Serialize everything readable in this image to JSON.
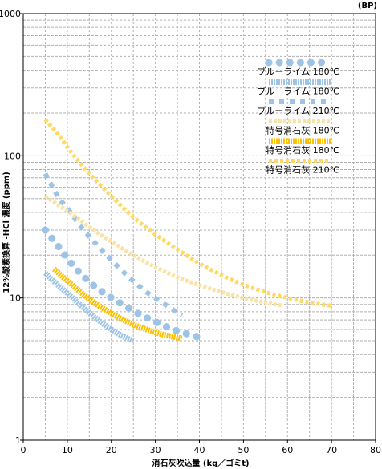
{
  "chart_data": {
    "type": "line",
    "unit_label": "(BP)",
    "xlabel": "消石灰吹込量 (kg／ゴミt)",
    "ylabel": "12%酸素換算 -HCl 濃度 (ppm)",
    "xlim": [
      0,
      80
    ],
    "ylim": [
      1,
      1000
    ],
    "y_scale": "log",
    "grid": true,
    "legend_position": "top-right",
    "x_ticks": [
      "0",
      "10",
      "20",
      "30",
      "40",
      "50",
      "60",
      "70",
      "80"
    ],
    "y_ticks": [
      "1",
      "10",
      "100",
      "1000"
    ],
    "colors": {
      "blue": "#9dc3e6",
      "orange": "#ffc000",
      "light_orange": "#f9e3a8",
      "yellow": "#ffd966",
      "grid": "#b0b0b0"
    },
    "series": [
      {
        "name": "ブルーライム 180℃",
        "style": "ellipses",
        "color": "#9dc3e6",
        "x": [
          5,
          8,
          10,
          12,
          15,
          18,
          22,
          26,
          30,
          34,
          38,
          41
        ],
        "y": [
          30,
          23,
          19,
          16,
          13,
          11,
          9.2,
          7.8,
          6.8,
          6.0,
          5.5,
          5.2
        ]
      },
      {
        "name": "ブルーライム 180℃",
        "style": "solid-band",
        "color": "#9dc3e6",
        "x": [
          5,
          7,
          10,
          13,
          16,
          19,
          22,
          25
        ],
        "y": [
          15,
          13,
          10.8,
          8.9,
          7.4,
          6.3,
          5.5,
          5.0
        ]
      },
      {
        "name": "ブルーライム 210℃",
        "style": "squares",
        "color": "#9dc3e6",
        "x": [
          5,
          8,
          10,
          13,
          16,
          20,
          24,
          28,
          32,
          36
        ],
        "y": [
          75,
          51,
          43,
          32,
          25,
          18.5,
          14,
          11,
          9.1,
          7.5
        ]
      },
      {
        "name": "特号消石灰 180℃",
        "style": "light-dashes",
        "color": "#f9e3a8",
        "x": [
          5,
          8,
          12,
          16,
          20,
          25,
          30,
          35,
          40,
          45,
          50,
          55,
          59
        ],
        "y": [
          52,
          45,
          37,
          30,
          25,
          20,
          16.5,
          14,
          12.3,
          11,
          10,
          9.3,
          8.8
        ]
      },
      {
        "name": "特号消石灰 180℃",
        "style": "solid-band",
        "color": "#ffc000",
        "x": [
          7,
          10,
          13,
          16,
          20,
          24,
          28,
          32,
          36
        ],
        "y": [
          16,
          13.2,
          11,
          9.3,
          7.8,
          6.7,
          6.0,
          5.5,
          5.2
        ]
      },
      {
        "name": "特号消石灰 210℃",
        "style": "dashes",
        "color": "#ffd966",
        "x": [
          5,
          8,
          11,
          15,
          20,
          25,
          30,
          35,
          40,
          45,
          50,
          55,
          60,
          65,
          70
        ],
        "y": [
          180,
          140,
          105,
          75,
          52,
          37,
          28,
          22,
          17.5,
          14.5,
          12.4,
          11,
          10,
          9.3,
          8.8
        ]
      }
    ]
  }
}
